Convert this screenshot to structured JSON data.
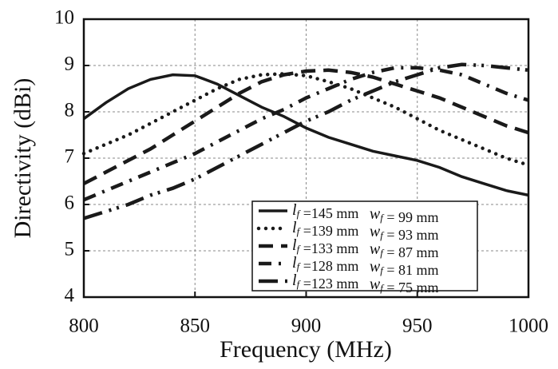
{
  "chart_data": {
    "type": "line",
    "x_label": "Frequency (MHz)",
    "y_label": "Directivity (dBi)",
    "x": [
      800,
      810,
      820,
      830,
      840,
      850,
      860,
      870,
      880,
      890,
      900,
      910,
      920,
      930,
      940,
      950,
      960,
      970,
      980,
      990,
      1000
    ],
    "xlim": [
      800,
      1000
    ],
    "xticks": [
      800,
      850,
      900,
      950,
      1000
    ],
    "ylim": [
      4,
      10
    ],
    "yticks": [
      4,
      5,
      6,
      7,
      8,
      9,
      10
    ],
    "grid": true,
    "legend": "lower right",
    "series": [
      {
        "name": "lf =145 mm   wf = 99 mm",
        "color": "#1a1a1a",
        "style": "solid",
        "values": [
          7.85,
          8.2,
          8.5,
          8.7,
          8.8,
          8.78,
          8.6,
          8.35,
          8.1,
          7.9,
          7.65,
          7.45,
          7.3,
          7.15,
          7.05,
          6.95,
          6.8,
          6.6,
          6.45,
          6.3,
          6.2
        ]
      },
      {
        "name": "lf =139 mm   wf = 93 mm",
        "color": "#1a1a1a",
        "style": "dotted",
        "values": [
          7.1,
          7.3,
          7.5,
          7.75,
          8.0,
          8.25,
          8.5,
          8.7,
          8.8,
          8.82,
          8.78,
          8.65,
          8.5,
          8.3,
          8.1,
          7.85,
          7.6,
          7.4,
          7.2,
          7.0,
          6.85
        ]
      },
      {
        "name": "lf =133 mm   wf = 87 mm",
        "color": "#1a1a1a",
        "style": "dashed",
        "values": [
          6.45,
          6.7,
          6.95,
          7.2,
          7.5,
          7.8,
          8.1,
          8.4,
          8.65,
          8.8,
          8.88,
          8.9,
          8.85,
          8.75,
          8.6,
          8.45,
          8.3,
          8.1,
          7.9,
          7.7,
          7.55
        ]
      },
      {
        "name": "lf =128 mm   wf = 81 mm",
        "color": "#1a1a1a",
        "style": "dashdot",
        "values": [
          6.1,
          6.3,
          6.5,
          6.7,
          6.9,
          7.1,
          7.35,
          7.6,
          7.85,
          8.05,
          8.3,
          8.5,
          8.7,
          8.85,
          8.95,
          8.95,
          8.9,
          8.8,
          8.6,
          8.4,
          8.25
        ]
      },
      {
        "name": "lf =123 mm   wf = 75 mm",
        "color": "#1a1a1a",
        "style": "dashdotdot",
        "values": [
          5.7,
          5.85,
          6.0,
          6.2,
          6.35,
          6.55,
          6.8,
          7.05,
          7.3,
          7.55,
          7.8,
          8.0,
          8.25,
          8.45,
          8.65,
          8.8,
          8.95,
          9.02,
          9.0,
          8.95,
          8.9
        ]
      }
    ]
  }
}
